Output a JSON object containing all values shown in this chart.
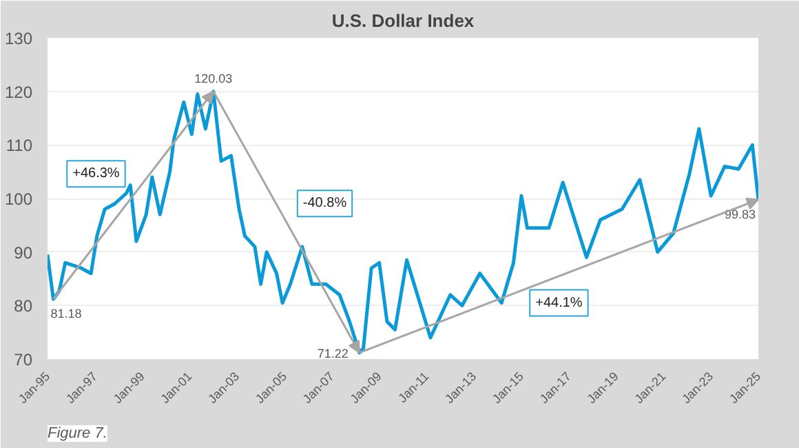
{
  "chart_data": {
    "type": "line",
    "title": "U.S. Dollar Index",
    "x": [
      "1995-01",
      "1995-04",
      "1995-07",
      "1995-10",
      "1996-06",
      "1996-11",
      "1997-02",
      "1997-06",
      "1997-11",
      "1998-05",
      "1998-07",
      "1998-10",
      "1999-03",
      "1999-06",
      "1999-10",
      "2000-03",
      "2000-05",
      "2000-10",
      "2001-02",
      "2001-05",
      "2001-09",
      "2002-01",
      "2002-05",
      "2002-10",
      "2003-02",
      "2003-05",
      "2003-10",
      "2004-01",
      "2004-04",
      "2004-09",
      "2004-12",
      "2005-04",
      "2005-10",
      "2006-03",
      "2006-10",
      "2007-05",
      "2007-10",
      "2008-03",
      "2008-05",
      "2008-09",
      "2009-01",
      "2009-05",
      "2009-09",
      "2010-03",
      "2011-03",
      "2012-01",
      "2012-07",
      "2013-04",
      "2014-03",
      "2014-09",
      "2015-01",
      "2015-04",
      "2016-03",
      "2016-10",
      "2017-10",
      "2018-05",
      "2019-04",
      "2020-01",
      "2020-10",
      "2021-06",
      "2022-02",
      "2022-07",
      "2023-01",
      "2023-08",
      "2024-03",
      "2024-10",
      "2025-01"
    ],
    "series": [
      {
        "color": "#0a9ad8",
        "values": [
          89.5,
          81.2,
          82.7,
          88,
          87,
          86,
          93,
          98,
          99,
          101,
          102.5,
          92,
          97,
          104,
          97,
          105,
          111,
          118,
          112,
          119.5,
          113,
          120,
          107,
          108,
          98,
          93,
          91,
          84,
          90,
          86,
          80.5,
          84,
          91,
          84,
          84,
          82,
          77,
          71.2,
          72,
          87,
          88,
          77,
          75.5,
          88.5,
          74,
          82,
          80,
          86,
          80.5,
          88,
          100.5,
          94.5,
          94.5,
          103,
          89,
          96,
          98,
          103.5,
          90,
          93.5,
          104.5,
          113,
          100.5,
          106,
          105.5,
          110,
          99.8
        ]
      }
    ],
    "ylim": [
      70,
      130
    ],
    "yticks": [
      70,
      80,
      90,
      100,
      110,
      120,
      130
    ],
    "xlim": [
      "1995-01",
      "2025-01"
    ],
    "xticks": [
      {
        "value": "1995-01",
        "label": "Jan-95"
      },
      {
        "value": "1997-01",
        "label": "Jan-97"
      },
      {
        "value": "1999-01",
        "label": "Jan-99"
      },
      {
        "value": "2001-01",
        "label": "Jan-01"
      },
      {
        "value": "2003-01",
        "label": "Jan-03"
      },
      {
        "value": "2005-01",
        "label": "Jan-05"
      },
      {
        "value": "2007-01",
        "label": "Jan-07"
      },
      {
        "value": "2009-01",
        "label": "Jan-09"
      },
      {
        "value": "2011-01",
        "label": "Jan-11"
      },
      {
        "value": "2013-01",
        "label": "Jan-13"
      },
      {
        "value": "2015-01",
        "label": "Jan-15"
      },
      {
        "value": "2017-01",
        "label": "Jan-17"
      },
      {
        "value": "2019-01",
        "label": "Jan-19"
      },
      {
        "value": "2021-01",
        "label": "Jan-21"
      },
      {
        "value": "2023-01",
        "label": "Jan-23"
      },
      {
        "value": "2025-01",
        "label": "Jan-25"
      }
    ],
    "grid": "y",
    "annotations": [
      "+46.3%",
      "-40.8%",
      "+44.1%",
      "Figure 7.",
      {
        "text": "81.18",
        "x": "1995-04",
        "y": 81.2
      },
      {
        "text": "120.03",
        "x": "2002-01",
        "y": 120
      },
      {
        "text": "71.22",
        "x": "2008-03",
        "y": 71.2
      },
      {
        "text": "99.83",
        "x": "2025-01",
        "y": 99.8
      }
    ]
  }
}
